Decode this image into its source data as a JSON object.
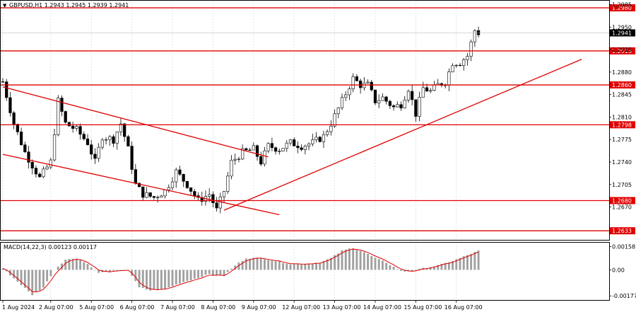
{
  "chart_data": [
    {
      "type": "candlestick",
      "title": "GBPUSD,H1  1.2943 1.2945 1.2939 1.2941",
      "current_price": 1.2941,
      "ylim": [
        1.262,
        1.299
      ],
      "y_ticks": [
        1.2985,
        1.295,
        1.2915,
        1.288,
        1.2845,
        1.281,
        1.2775,
        1.274,
        1.2705,
        1.267
      ],
      "x_tick_labels": [
        "1 Aug 2024",
        "2 Aug 07:00",
        "5 Aug 07:00",
        "6 Aug 07:00",
        "7 Aug 07:00",
        "8 Aug 07:00",
        "9 Aug 07:00",
        "12 Aug 07:00",
        "13 Aug 07:00",
        "14 Aug 07:00",
        "15 Aug 07:00",
        "16 Aug 07:00"
      ],
      "x_tick_positions": [
        0,
        13,
        24,
        35,
        46,
        57,
        68,
        79,
        90,
        101,
        112,
        123
      ],
      "bar_count": 130,
      "price_path": [
        [
          0,
          1.2865
        ],
        [
          3,
          1.28
        ],
        [
          6,
          1.2755
        ],
        [
          8,
          1.2735
        ],
        [
          10,
          1.2715
        ],
        [
          13,
          1.274
        ],
        [
          15,
          1.2835
        ],
        [
          17,
          1.28
        ],
        [
          20,
          1.279
        ],
        [
          23,
          1.277
        ],
        [
          25,
          1.274
        ],
        [
          27,
          1.278
        ],
        [
          30,
          1.2775
        ],
        [
          32,
          1.28
        ],
        [
          34,
          1.276
        ],
        [
          36,
          1.2705
        ],
        [
          38,
          1.269
        ],
        [
          41,
          1.2685
        ],
        [
          44,
          1.2695
        ],
        [
          47,
          1.2725
        ],
        [
          50,
          1.2705
        ],
        [
          53,
          1.268
        ],
        [
          56,
          1.269
        ],
        [
          58,
          1.2665
        ],
        [
          60,
          1.2695
        ],
        [
          62,
          1.274
        ],
        [
          65,
          1.2755
        ],
        [
          68,
          1.276
        ],
        [
          70,
          1.274
        ],
        [
          72,
          1.2765
        ],
        [
          75,
          1.276
        ],
        [
          78,
          1.277
        ],
        [
          81,
          1.2765
        ],
        [
          84,
          1.277
        ],
        [
          87,
          1.278
        ],
        [
          89,
          1.28
        ],
        [
          92,
          1.2835
        ],
        [
          95,
          1.287
        ],
        [
          97,
          1.286
        ],
        [
          99,
          1.286
        ],
        [
          101,
          1.2835
        ],
        [
          103,
          1.284
        ],
        [
          106,
          1.2825
        ],
        [
          108,
          1.283
        ],
        [
          110,
          1.2855
        ],
        [
          112,
          1.2815
        ],
        [
          114,
          1.2855
        ],
        [
          116,
          1.285
        ],
        [
          118,
          1.286
        ],
        [
          120,
          1.2865
        ],
        [
          122,
          1.2895
        ],
        [
          124,
          1.2895
        ],
        [
          126,
          1.2905
        ],
        [
          128,
          1.2945
        ],
        [
          129,
          1.2941
        ]
      ],
      "horizontal_levels": [
        {
          "label": "1.2980",
          "value": 1.298
        },
        {
          "label": "1.2913",
          "value": 1.2913
        },
        {
          "label": "1.2860",
          "value": 1.286
        },
        {
          "label": "1.2798",
          "value": 1.2798
        },
        {
          "label": "1.2680",
          "value": 1.268
        },
        {
          "label": "1.2633",
          "value": 1.2633
        }
      ],
      "trend_lines": [
        {
          "from": [
            0,
            1.2857
          ],
          "to": [
            72,
            1.2748
          ]
        },
        {
          "from": [
            0,
            1.2752
          ],
          "to": [
            75,
            1.2658
          ]
        },
        {
          "from": [
            60,
            1.2665
          ],
          "to": [
            157,
            1.29
          ]
        }
      ],
      "colors": {
        "level": "#e00000",
        "candle": "#000000",
        "current_price_box": "#000000",
        "grid": "#c8c8c8"
      }
    },
    {
      "type": "bar",
      "title": "MACD(14,22,3) 0.00123 0.00117",
      "ylim": [
        -0.002,
        0.0018
      ],
      "y_ticks": [
        0.00158,
        0.0,
        -0.00177
      ],
      "y_tick_labels": [
        "0.00158",
        "0.00",
        "-0.00177"
      ],
      "macd_path": [
        [
          0,
          0.0001
        ],
        [
          4,
          -0.0008
        ],
        [
          8,
          -0.0017
        ],
        [
          11,
          -0.0012
        ],
        [
          14,
          0.0
        ],
        [
          17,
          0.0007
        ],
        [
          20,
          0.0008
        ],
        [
          23,
          0.0004
        ],
        [
          26,
          -0.0002
        ],
        [
          30,
          -0.0001
        ],
        [
          34,
          0.0
        ],
        [
          37,
          -0.0012
        ],
        [
          40,
          -0.0014
        ],
        [
          44,
          -0.0013
        ],
        [
          48,
          -0.0009
        ],
        [
          52,
          -0.0006
        ],
        [
          56,
          -0.0003
        ],
        [
          60,
          -0.0004
        ],
        [
          63,
          0.0003
        ],
        [
          66,
          0.0008
        ],
        [
          70,
          0.0008
        ],
        [
          74,
          0.0006
        ],
        [
          78,
          0.0004
        ],
        [
          82,
          0.0004
        ],
        [
          86,
          0.0005
        ],
        [
          89,
          0.0008
        ],
        [
          92,
          0.0013
        ],
        [
          95,
          0.0015
        ],
        [
          98,
          0.0012
        ],
        [
          101,
          0.0008
        ],
        [
          104,
          0.0005
        ],
        [
          108,
          -0.0001
        ],
        [
          111,
          -0.0001
        ],
        [
          114,
          0.0001
        ],
        [
          118,
          0.0003
        ],
        [
          122,
          0.0006
        ],
        [
          126,
          0.001
        ],
        [
          129,
          0.0013
        ]
      ],
      "colors": {
        "histogram": "#a0a0a0",
        "signal": "#e00000"
      }
    }
  ]
}
